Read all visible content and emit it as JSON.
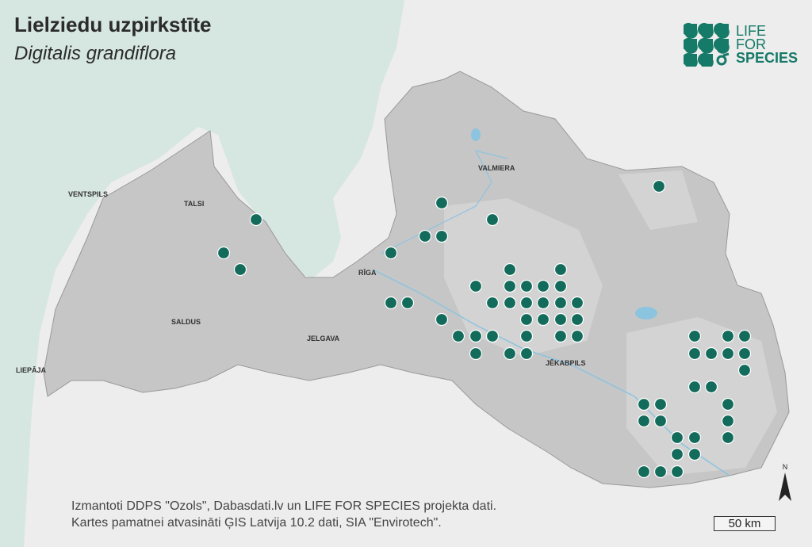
{
  "header": {
    "title": "Lielziedu uzpirkstīte",
    "subtitle": "Digitalis grandiflora"
  },
  "logo": {
    "line1": "LIFE",
    "line2": "FOR",
    "line3": "SPECIES"
  },
  "cities": [
    "VENTSPILS",
    "TALSI",
    "RĪGA",
    "VALMIERA",
    "SALDUS",
    "JELGAVA",
    "LIEPĀJA",
    "JĒKABPILS"
  ],
  "credits": {
    "line1": "Izmantoti DDPS \"Ozols\", Dabasdati.lv un LIFE FOR SPECIES projekta dati.",
    "line2": "Kartes pamatnei atvasināti ĢIS Latvija 10.2 dati, SIA \"Envirotech\"."
  },
  "scale": {
    "label": "50 km"
  },
  "north": {
    "label": "N"
  },
  "colors": {
    "sea": "#d6e6e0",
    "land": "#c4c4c4",
    "outside": "#ededed",
    "points": "#136b5b",
    "brand": "#157a67",
    "water": "#8cc4e0"
  }
}
